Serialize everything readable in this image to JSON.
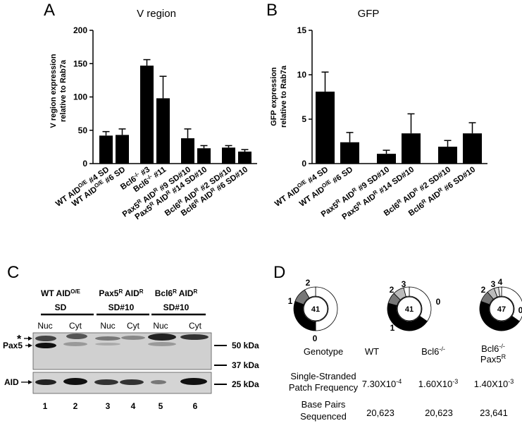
{
  "panels": {
    "A": {
      "letter": "A",
      "chart_data": {
        "type": "bar",
        "title": "V region",
        "ylabel_line1": "V region expression",
        "ylabel_line2": "relative to Rab7a",
        "ylim": [
          0,
          200
        ],
        "yticks": [
          "0",
          "50",
          "100",
          "150",
          "200"
        ],
        "groups": [
          {
            "categories": [
              "WT AID^O/E #4 SD",
              "WT AID^O/E #6 SD"
            ],
            "values": [
              42,
              43
            ],
            "errors": [
              6,
              9
            ]
          },
          {
            "categories": [
              "Bcl6^-/- #3",
              "Bcl6^-/- #11"
            ],
            "values": [
              147,
              98
            ],
            "errors": [
              9,
              33
            ]
          },
          {
            "categories": [
              "Pax5^R AID^R #9 SD#10",
              "Pax5^R AID^R #14 SD#10"
            ],
            "values": [
              38,
              23
            ],
            "errors": [
              14,
              4
            ]
          },
          {
            "categories": [
              "Bcl6^R AID^R #2 SD#10",
              "Bcl6^R AID^R #6 SD#10"
            ],
            "values": [
              24,
              18
            ],
            "errors": [
              3,
              3
            ]
          }
        ]
      }
    },
    "B": {
      "letter": "B",
      "chart_data": {
        "type": "bar",
        "title": "GFP",
        "ylabel_line1": "GFP expression",
        "ylabel_line2": "relative to Rab7a",
        "ylim": [
          0,
          15
        ],
        "yticks": [
          "0",
          "5",
          "10",
          "15"
        ],
        "groups": [
          {
            "categories": [
              "WT AID^O/E #4 SD",
              "WT AID^O/E #6 SD"
            ],
            "values": [
              8.1,
              2.4
            ],
            "errors": [
              2.2,
              1.1
            ]
          },
          {
            "categories": [
              "Pax5^R AID^R #9 SD#10",
              "Pax5^R AID^R #14 SD#10"
            ],
            "values": [
              1.1,
              3.4
            ],
            "errors": [
              0.4,
              2.2
            ]
          },
          {
            "categories": [
              "Bcl6^R AID^R #2 SD#10",
              "Bcl6^R AID^R #6 SD#10"
            ],
            "values": [
              1.9,
              3.4
            ],
            "errors": [
              0.7,
              1.2
            ]
          }
        ]
      }
    },
    "C": {
      "letter": "C",
      "headers": [
        {
          "line1": "WT AID",
          "sup": "O/E",
          "line2": "SD"
        },
        {
          "line1": "Pax5",
          "sup": "R",
          "mid": " AID",
          "sup2": "R",
          "line2": "SD#10"
        },
        {
          "line1": "Bcl6",
          "sup": "R",
          "mid": " AID",
          "sup2": "R",
          "line2": "SD#10"
        }
      ],
      "fractions": [
        "Nuc",
        "Cyt",
        "Nuc",
        "Cyt",
        "Nuc",
        "Cyt"
      ],
      "lanes": [
        "1",
        "2",
        "3",
        "4",
        "5",
        "6"
      ],
      "left_labels": {
        "asterisk": "*",
        "pax5": "Pax5",
        "aid": "AID"
      },
      "markers": [
        "50 kDa",
        "37 kDa",
        "25 kDa"
      ]
    },
    "D": {
      "letter": "D",
      "donuts": [
        {
          "center": "41",
          "labels": [
            "1",
            "2",
            "0"
          ]
        },
        {
          "center": "41",
          "labels": [
            "2",
            "3",
            "0",
            "1"
          ]
        },
        {
          "center": "47",
          "labels": [
            "2",
            "3",
            "4",
            "0",
            "1"
          ]
        }
      ],
      "table": {
        "genotype_label": "Genotype",
        "genotypes": [
          "WT",
          "Bcl6-/-",
          "Bcl6-/- Pax5R"
        ],
        "freq_label_line1": "Single-Stranded",
        "freq_label_line2": "Patch Frequency",
        "freqs": [
          {
            "mant": "7.30X10",
            "exp": "-4"
          },
          {
            "mant": "1.60X10",
            "exp": "-3"
          },
          {
            "mant": "1.40X10",
            "exp": "-3"
          }
        ],
        "bp_label_line1": "Base Pairs",
        "bp_label_line2": "Sequenced",
        "bps": [
          "20,623",
          "20,623",
          "23,641"
        ]
      }
    }
  }
}
